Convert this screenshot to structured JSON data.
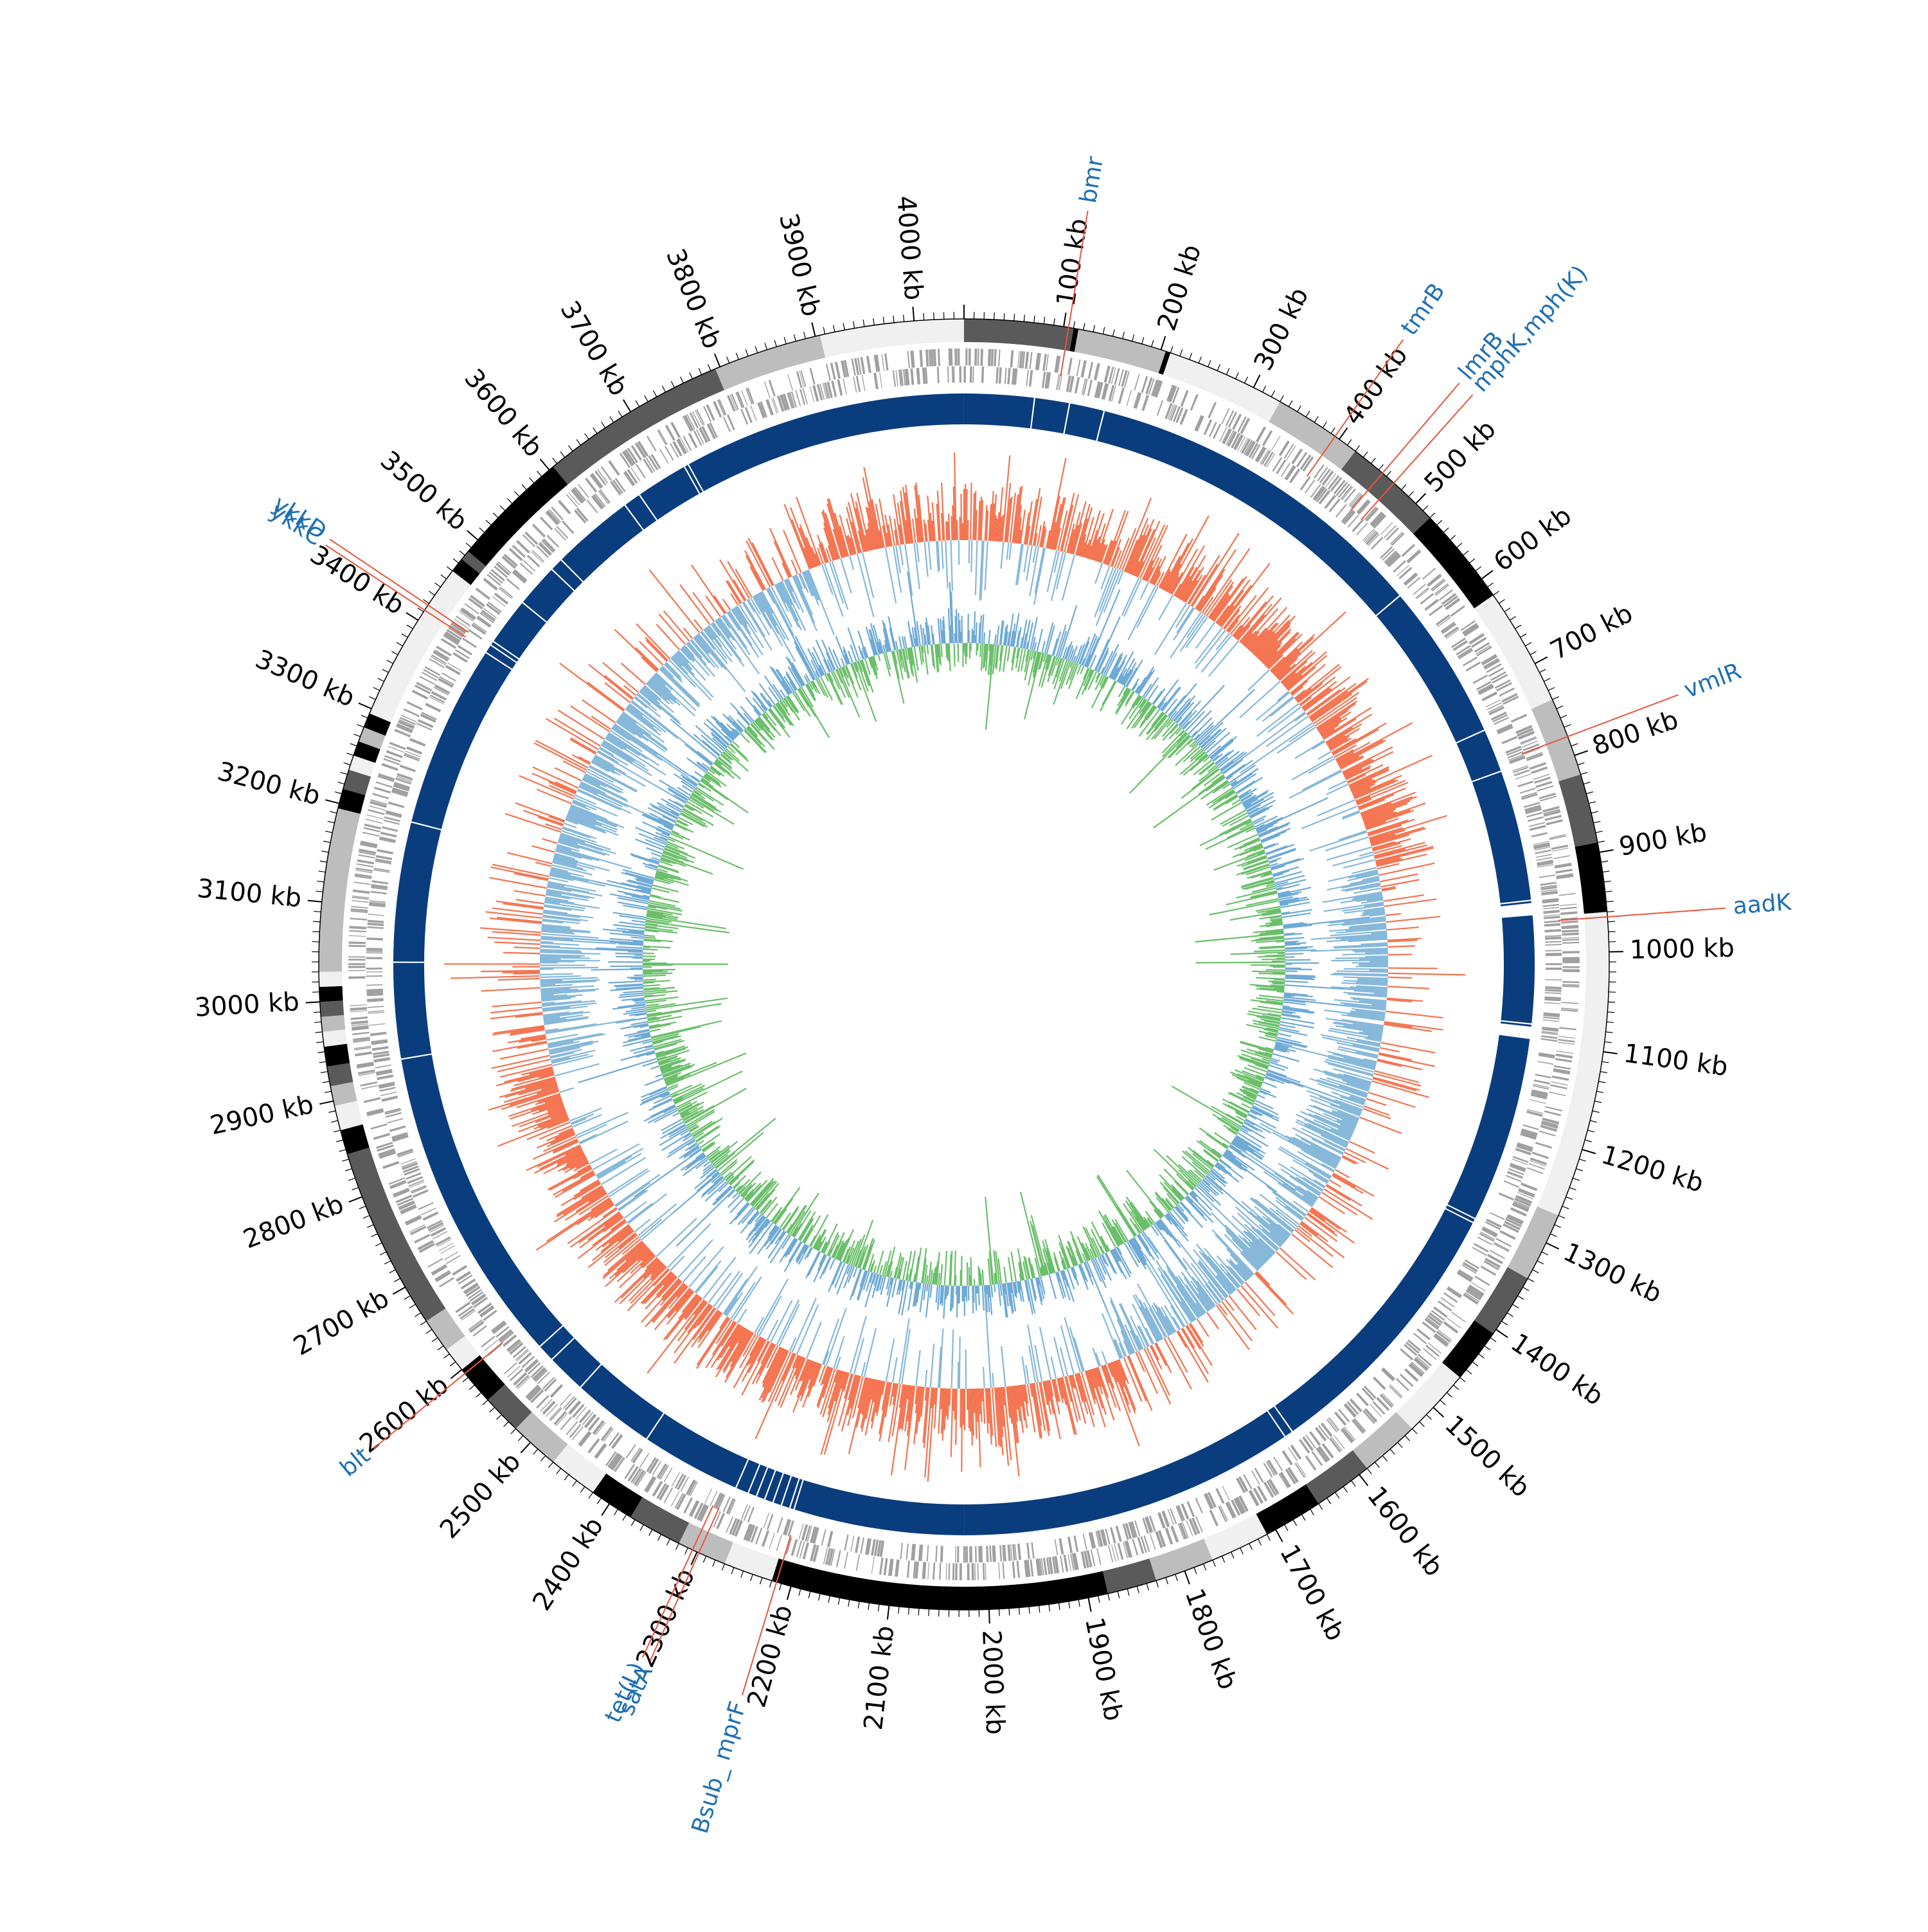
{
  "genome": {
    "length_kb": 4050,
    "tick_unit": "kb",
    "major_tick_step_kb": 100,
    "minor_tick_step_kb": 10
  },
  "ticks": [
    {
      "kb": 100,
      "label": "100 kb"
    },
    {
      "kb": 200,
      "label": "200 kb"
    },
    {
      "kb": 300,
      "label": "300 kb"
    },
    {
      "kb": 400,
      "label": "400 kb"
    },
    {
      "kb": 500,
      "label": "500 kb"
    },
    {
      "kb": 600,
      "label": "600 kb"
    },
    {
      "kb": 700,
      "label": "700 kb"
    },
    {
      "kb": 800,
      "label": "800 kb"
    },
    {
      "kb": 900,
      "label": "900 kb"
    },
    {
      "kb": 1000,
      "label": "1000 kb"
    },
    {
      "kb": 1100,
      "label": "1100 kb"
    },
    {
      "kb": 1200,
      "label": "1200 kb"
    },
    {
      "kb": 1300,
      "label": "1300 kb"
    },
    {
      "kb": 1400,
      "label": "1400 kb"
    },
    {
      "kb": 1500,
      "label": "1500 kb"
    },
    {
      "kb": 1600,
      "label": "1600 kb"
    },
    {
      "kb": 1700,
      "label": "1700 kb"
    },
    {
      "kb": 1800,
      "label": "1800 kb"
    },
    {
      "kb": 1900,
      "label": "1900 kb"
    },
    {
      "kb": 2000,
      "label": "2000 kb"
    },
    {
      "kb": 2100,
      "label": "2100 kb"
    },
    {
      "kb": 2200,
      "label": "2200 kb"
    },
    {
      "kb": 2300,
      "label": "2300 kb"
    },
    {
      "kb": 2400,
      "label": "2400 kb"
    },
    {
      "kb": 2500,
      "label": "2500 kb"
    },
    {
      "kb": 2600,
      "label": "2600 kb"
    },
    {
      "kb": 2700,
      "label": "2700 kb"
    },
    {
      "kb": 2800,
      "label": "2800 kb"
    },
    {
      "kb": 2900,
      "label": "2900 kb"
    },
    {
      "kb": 3000,
      "label": "3000 kb"
    },
    {
      "kb": 3100,
      "label": "3100 kb"
    },
    {
      "kb": 3200,
      "label": "3200 kb"
    },
    {
      "kb": 3300,
      "label": "3300 kb"
    },
    {
      "kb": 3400,
      "label": "3400 kb"
    },
    {
      "kb": 3500,
      "label": "3500 kb"
    },
    {
      "kb": 3600,
      "label": "3600 kb"
    },
    {
      "kb": 3700,
      "label": "3700 kb"
    },
    {
      "kb": 3800,
      "label": "3800 kb"
    },
    {
      "kb": 3900,
      "label": "3900 kb"
    },
    {
      "kb": 4000,
      "label": "4000 kb"
    }
  ],
  "gene_labels": [
    {
      "name": "bmr",
      "kb": 105
    },
    {
      "name": "tmrB",
      "kb": 395
    },
    {
      "name": "lmrB",
      "kb": 455
    },
    {
      "name": "mphK,mph(K)",
      "kb": 470
    },
    {
      "name": "vmlR",
      "kb": 780
    },
    {
      "name": "aadK",
      "kb": 965
    },
    {
      "name": "Bsub_ mprF",
      "kb": 2215
    },
    {
      "name": "satA",
      "kb": 2298
    },
    {
      "name": "tet(L)",
      "kb": 2305
    },
    {
      "name": "blt",
      "kb": 2595
    },
    {
      "name": "ykkC",
      "kb": 3412
    },
    {
      "name": "ykkD",
      "kb": 3418
    }
  ],
  "colors": {
    "gene_label_text": "#1f6fb2",
    "gene_label_line": "#e8553e",
    "contig_palette": [
      "#f0f0f0",
      "#bdbdbd",
      "#5a5a5a",
      "#000000"
    ],
    "gene_features": "#a0a0a0",
    "coverage_band": "#0a3d7e",
    "gc_skew_positive": "#f4734f",
    "gc_skew_negative": "#86b8da",
    "gc_content_positive": "#6bbf6b",
    "gc_content_negative": "#6faad6"
  },
  "contigs": [
    {
      "start": 0,
      "end": 110,
      "shade": 2
    },
    {
      "start": 110,
      "end": 115,
      "shade": 3
    },
    {
      "start": 115,
      "end": 205,
      "shade": 1
    },
    {
      "start": 205,
      "end": 210,
      "shade": 3
    },
    {
      "start": 210,
      "end": 330,
      "shade": 0
    },
    {
      "start": 330,
      "end": 420,
      "shade": 1
    },
    {
      "start": 420,
      "end": 520,
      "shade": 2
    },
    {
      "start": 520,
      "end": 620,
      "shade": 3
    },
    {
      "start": 620,
      "end": 740,
      "shade": 0
    },
    {
      "start": 740,
      "end": 820,
      "shade": 1
    },
    {
      "start": 820,
      "end": 890,
      "shade": 2
    },
    {
      "start": 890,
      "end": 960,
      "shade": 3
    },
    {
      "start": 960,
      "end": 1270,
      "shade": 0
    },
    {
      "start": 1270,
      "end": 1340,
      "shade": 1
    },
    {
      "start": 1340,
      "end": 1405,
      "shade": 2
    },
    {
      "start": 1405,
      "end": 1460,
      "shade": 3
    },
    {
      "start": 1460,
      "end": 1530,
      "shade": 0
    },
    {
      "start": 1530,
      "end": 1590,
      "shade": 1
    },
    {
      "start": 1590,
      "end": 1650,
      "shade": 2
    },
    {
      "start": 1650,
      "end": 1710,
      "shade": 3
    },
    {
      "start": 1710,
      "end": 1770,
      "shade": 0
    },
    {
      "start": 1770,
      "end": 1830,
      "shade": 1
    },
    {
      "start": 1830,
      "end": 1880,
      "shade": 2
    },
    {
      "start": 1880,
      "end": 2220,
      "shade": 3
    },
    {
      "start": 2220,
      "end": 2270,
      "shade": 0
    },
    {
      "start": 2270,
      "end": 2320,
      "shade": 1
    },
    {
      "start": 2320,
      "end": 2375,
      "shade": 2
    },
    {
      "start": 2375,
      "end": 2420,
      "shade": 3
    },
    {
      "start": 2420,
      "end": 2470,
      "shade": 0
    },
    {
      "start": 2470,
      "end": 2520,
      "shade": 1
    },
    {
      "start": 2520,
      "end": 2560,
      "shade": 2
    },
    {
      "start": 2560,
      "end": 2600,
      "shade": 3
    },
    {
      "start": 2600,
      "end": 2625,
      "shade": 0
    },
    {
      "start": 2625,
      "end": 2660,
      "shade": 1
    },
    {
      "start": 2660,
      "end": 2845,
      "shade": 2
    },
    {
      "start": 2845,
      "end": 2870,
      "shade": 3
    },
    {
      "start": 2870,
      "end": 2895,
      "shade": 0
    },
    {
      "start": 2895,
      "end": 2915,
      "shade": 1
    },
    {
      "start": 2915,
      "end": 2935,
      "shade": 2
    },
    {
      "start": 2935,
      "end": 2955,
      "shade": 3
    },
    {
      "start": 2955,
      "end": 2970,
      "shade": 0
    },
    {
      "start": 2970,
      "end": 2985,
      "shade": 1
    },
    {
      "start": 2985,
      "end": 3000,
      "shade": 2
    },
    {
      "start": 3000,
      "end": 3015,
      "shade": 3
    },
    {
      "start": 3015,
      "end": 3030,
      "shade": 0
    },
    {
      "start": 3030,
      "end": 3195,
      "shade": 1
    },
    {
      "start": 3195,
      "end": 3215,
      "shade": 3
    },
    {
      "start": 3215,
      "end": 3235,
      "shade": 2
    },
    {
      "start": 3235,
      "end": 3250,
      "shade": 0
    },
    {
      "start": 3250,
      "end": 3265,
      "shade": 3
    },
    {
      "start": 3265,
      "end": 3280,
      "shade": 1
    },
    {
      "start": 3280,
      "end": 3295,
      "shade": 3
    },
    {
      "start": 3295,
      "end": 3460,
      "shade": 0
    },
    {
      "start": 3460,
      "end": 3475,
      "shade": 3
    },
    {
      "start": 3475,
      "end": 3485,
      "shade": 2
    },
    {
      "start": 3485,
      "end": 3605,
      "shade": 3
    },
    {
      "start": 3605,
      "end": 3795,
      "shade": 2
    },
    {
      "start": 3795,
      "end": 3905,
      "shade": 1
    },
    {
      "start": 3905,
      "end": 4050,
      "shade": 0
    }
  ],
  "coverage_gaps_kb": [
    80,
    120,
    160,
    560,
    740,
    790,
    940,
    950,
    955,
    1080,
    1090,
    1310,
    1315,
    1630,
    1640,
    2220,
    2225,
    2235,
    2245,
    2255,
    2265,
    2275,
    2290,
    2405,
    2500,
    2545,
    2565,
    2930,
    3040,
    3200,
    3410,
    3420,
    3425,
    3480,
    3530,
    3545,
    3640,
    3660,
    3720,
    3725
  ]
}
